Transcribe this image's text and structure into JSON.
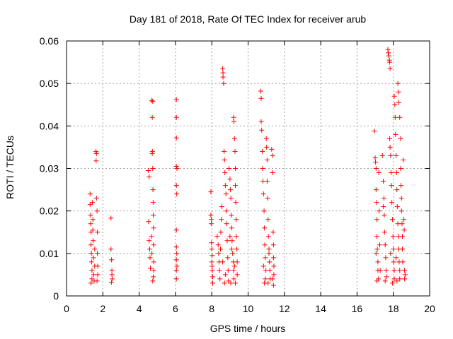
{
  "chart_data": {
    "type": "scatter",
    "title": "Day 181 of 2018, Rate Of TEC Index for receiver arub",
    "xlabel": "GPS time / hours",
    "ylabel": "ROTI / TECUs",
    "xlim": [
      0,
      20
    ],
    "ylim": [
      0,
      0.06
    ],
    "xticks": [
      "0",
      "2",
      "4",
      "6",
      "8",
      "10",
      "12",
      "14",
      "16",
      "18",
      "20"
    ],
    "yticks": [
      "0",
      "0.01",
      "0.02",
      "0.03",
      "0.04",
      "0.05",
      "0.06"
    ],
    "grid": true,
    "marker": "+",
    "marker_color": "#ff0000",
    "series": [
      {
        "name": "ROTI",
        "points": [
          [
            1.3,
            0.024
          ],
          [
            1.3,
            0.0215
          ],
          [
            1.32,
            0.019
          ],
          [
            1.33,
            0.017
          ],
          [
            1.35,
            0.015
          ],
          [
            1.35,
            0.012
          ],
          [
            1.37,
            0.01
          ],
          [
            1.38,
            0.008
          ],
          [
            1.4,
            0.006
          ],
          [
            1.4,
            0.004
          ],
          [
            1.42,
            0.022
          ],
          [
            1.45,
            0.018
          ],
          [
            1.47,
            0.013
          ],
          [
            1.48,
            0.009
          ],
          [
            1.5,
            0.005
          ],
          [
            1.52,
            0.0035
          ],
          [
            1.55,
            0.007
          ],
          [
            1.55,
            0.011
          ],
          [
            1.35,
            0.003
          ],
          [
            1.45,
            0.0155
          ],
          [
            1.62,
            0.034
          ],
          [
            1.65,
            0.0335
          ],
          [
            1.63,
            0.0318
          ],
          [
            1.65,
            0.023
          ],
          [
            1.68,
            0.02
          ],
          [
            1.7,
            0.015
          ],
          [
            1.7,
            0.01
          ],
          [
            1.72,
            0.007
          ],
          [
            1.72,
            0.005
          ],
          [
            1.68,
            0.0035
          ],
          [
            2.45,
            0.0183
          ],
          [
            2.45,
            0.011
          ],
          [
            2.48,
            0.0085
          ],
          [
            2.5,
            0.006
          ],
          [
            2.5,
            0.005
          ],
          [
            2.52,
            0.004
          ],
          [
            2.47,
            0.0032
          ],
          [
            4.5,
            0.0295
          ],
          [
            4.55,
            0.028
          ],
          [
            4.52,
            0.0175
          ],
          [
            4.55,
            0.013
          ],
          [
            4.58,
            0.011
          ],
          [
            4.6,
            0.009
          ],
          [
            4.62,
            0.0065
          ],
          [
            4.7,
            0.046
          ],
          [
            4.75,
            0.0458
          ],
          [
            4.72,
            0.042
          ],
          [
            4.73,
            0.034
          ],
          [
            4.72,
            0.0335
          ],
          [
            4.75,
            0.03
          ],
          [
            4.76,
            0.025
          ],
          [
            4.77,
            0.022
          ],
          [
            4.78,
            0.019
          ],
          [
            4.79,
            0.016
          ],
          [
            4.8,
            0.012
          ],
          [
            4.8,
            0.008
          ],
          [
            4.8,
            0.006
          ],
          [
            4.78,
            0.0045
          ],
          [
            4.75,
            0.0035
          ],
          [
            4.7,
            0.01
          ],
          [
            4.68,
            0.014
          ],
          [
            6.05,
            0.0462
          ],
          [
            6.05,
            0.042
          ],
          [
            6.05,
            0.0372
          ],
          [
            6.05,
            0.0305
          ],
          [
            6.08,
            0.03
          ],
          [
            6.05,
            0.026
          ],
          [
            6.07,
            0.024
          ],
          [
            6.05,
            0.0155
          ],
          [
            6.05,
            0.0115
          ],
          [
            6.07,
            0.01
          ],
          [
            6.05,
            0.0085
          ],
          [
            6.05,
            0.006
          ],
          [
            6.05,
            0.004
          ],
          [
            6.08,
            0.007
          ],
          [
            7.95,
            0.0245
          ],
          [
            7.95,
            0.019
          ],
          [
            7.97,
            0.017
          ],
          [
            7.98,
            0.0125
          ],
          [
            8.0,
            0.011
          ],
          [
            8.02,
            0.0095
          ],
          [
            8.0,
            0.008
          ],
          [
            8.03,
            0.006
          ],
          [
            8.05,
            0.0045
          ],
          [
            8.05,
            0.003
          ],
          [
            7.98,
            0.018
          ],
          [
            8.02,
            0.007
          ],
          [
            8.3,
            0.014
          ],
          [
            8.35,
            0.012
          ],
          [
            8.38,
            0.01
          ],
          [
            8.4,
            0.008
          ],
          [
            8.42,
            0.006
          ],
          [
            8.45,
            0.004
          ],
          [
            8.48,
            0.011
          ],
          [
            8.5,
            0.015
          ],
          [
            8.52,
            0.018
          ],
          [
            8.55,
            0.021
          ],
          [
            8.6,
            0.0535
          ],
          [
            8.62,
            0.0525
          ],
          [
            8.62,
            0.0515
          ],
          [
            8.65,
            0.05
          ],
          [
            8.68,
            0.034
          ],
          [
            8.7,
            0.032
          ],
          [
            8.72,
            0.029
          ],
          [
            8.75,
            0.026
          ],
          [
            8.78,
            0.024
          ],
          [
            8.8,
            0.02
          ],
          [
            8.82,
            0.017
          ],
          [
            8.85,
            0.013
          ],
          [
            8.88,
            0.009
          ],
          [
            8.9,
            0.006
          ],
          [
            8.92,
            0.0035
          ],
          [
            8.7,
            0.003
          ],
          [
            8.75,
            0.005
          ],
          [
            8.6,
            0.008
          ],
          [
            8.95,
            0.03
          ],
          [
            9.0,
            0.0275
          ],
          [
            9.02,
            0.025
          ],
          [
            9.05,
            0.023
          ],
          [
            9.08,
            0.019
          ],
          [
            9.1,
            0.016
          ],
          [
            9.12,
            0.013
          ],
          [
            9.15,
            0.01
          ],
          [
            9.18,
            0.008
          ],
          [
            9.2,
            0.006
          ],
          [
            9.22,
            0.004
          ],
          [
            9.05,
            0.003
          ],
          [
            9.1,
            0.011
          ],
          [
            9.0,
            0.014
          ],
          [
            9.2,
            0.042
          ],
          [
            9.22,
            0.041
          ],
          [
            9.25,
            0.037
          ],
          [
            9.28,
            0.034
          ],
          [
            9.3,
            0.03
          ],
          [
            9.3,
            0.026
          ],
          [
            9.32,
            0.022
          ],
          [
            9.35,
            0.018
          ],
          [
            9.35,
            0.014
          ],
          [
            9.38,
            0.011
          ],
          [
            9.4,
            0.008
          ],
          [
            9.4,
            0.005
          ],
          [
            9.3,
            0.003
          ],
          [
            9.25,
            0.007
          ],
          [
            10.7,
            0.0482
          ],
          [
            10.72,
            0.0465
          ],
          [
            10.72,
            0.041
          ],
          [
            10.75,
            0.039
          ],
          [
            10.78,
            0.034
          ],
          [
            10.8,
            0.03
          ],
          [
            10.82,
            0.027
          ],
          [
            10.85,
            0.024
          ],
          [
            10.88,
            0.02
          ],
          [
            10.9,
            0.016
          ],
          [
            10.92,
            0.012
          ],
          [
            10.95,
            0.009
          ],
          [
            10.98,
            0.006
          ],
          [
            10.95,
            0.004
          ],
          [
            10.9,
            0.003
          ],
          [
            10.85,
            0.007
          ],
          [
            11.0,
            0.037
          ],
          [
            11.02,
            0.035
          ],
          [
            11.05,
            0.032
          ],
          [
            11.05,
            0.027
          ],
          [
            11.08,
            0.023
          ],
          [
            11.1,
            0.018
          ],
          [
            11.12,
            0.014
          ],
          [
            11.15,
            0.011
          ],
          [
            11.18,
            0.008
          ],
          [
            11.2,
            0.006
          ],
          [
            11.22,
            0.004
          ],
          [
            11.1,
            0.003
          ],
          [
            11.15,
            0.01
          ],
          [
            11.3,
            0.0345
          ],
          [
            11.35,
            0.033
          ],
          [
            11.35,
            0.029
          ],
          [
            11.38,
            0.015
          ],
          [
            11.4,
            0.012
          ],
          [
            11.4,
            0.009
          ],
          [
            11.42,
            0.007
          ],
          [
            11.42,
            0.005
          ],
          [
            11.4,
            0.0025
          ],
          [
            11.35,
            0.004
          ],
          [
            16.95,
            0.0388
          ],
          [
            17.0,
            0.0325
          ],
          [
            17.02,
            0.0315
          ],
          [
            17.05,
            0.03
          ],
          [
            17.05,
            0.025
          ],
          [
            17.08,
            0.022
          ],
          [
            17.1,
            0.018
          ],
          [
            17.1,
            0.014
          ],
          [
            17.12,
            0.011
          ],
          [
            17.15,
            0.008
          ],
          [
            17.15,
            0.006
          ],
          [
            17.18,
            0.004
          ],
          [
            17.1,
            0.0035
          ],
          [
            17.05,
            0.01
          ],
          [
            17.2,
            0.029
          ],
          [
            17.22,
            0.02
          ],
          [
            17.25,
            0.012
          ],
          [
            17.28,
            0.006
          ],
          [
            17.4,
            0.033
          ],
          [
            17.45,
            0.027
          ],
          [
            17.48,
            0.023
          ],
          [
            17.5,
            0.019
          ],
          [
            17.52,
            0.015
          ],
          [
            17.55,
            0.012
          ],
          [
            17.58,
            0.009
          ],
          [
            17.6,
            0.006
          ],
          [
            17.62,
            0.0045
          ],
          [
            17.55,
            0.0035
          ],
          [
            17.45,
            0.021
          ],
          [
            17.7,
            0.058
          ],
          [
            17.72,
            0.0572
          ],
          [
            17.75,
            0.0565
          ],
          [
            17.78,
            0.0555
          ],
          [
            17.8,
            0.055
          ],
          [
            17.82,
            0.0535
          ],
          [
            17.8,
            0.037
          ],
          [
            17.82,
            0.035
          ],
          [
            17.85,
            0.033
          ],
          [
            17.88,
            0.029
          ],
          [
            17.9,
            0.026
          ],
          [
            17.92,
            0.022
          ],
          [
            17.95,
            0.018
          ],
          [
            17.98,
            0.014
          ],
          [
            18.0,
            0.011
          ],
          [
            18.02,
            0.008
          ],
          [
            18.05,
            0.006
          ],
          [
            18.05,
            0.004
          ],
          [
            17.95,
            0.003
          ],
          [
            17.85,
            0.01
          ],
          [
            18.05,
            0.047
          ],
          [
            18.08,
            0.045
          ],
          [
            18.1,
            0.042
          ],
          [
            18.12,
            0.038
          ],
          [
            18.15,
            0.033
          ],
          [
            18.18,
            0.029
          ],
          [
            18.2,
            0.025
          ],
          [
            18.22,
            0.021
          ],
          [
            18.25,
            0.017
          ],
          [
            18.28,
            0.014
          ],
          [
            18.3,
            0.011
          ],
          [
            18.32,
            0.008
          ],
          [
            18.35,
            0.006
          ],
          [
            18.35,
            0.004
          ],
          [
            18.2,
            0.0035
          ],
          [
            18.15,
            0.009
          ],
          [
            18.25,
            0.05
          ],
          [
            18.28,
            0.048
          ],
          [
            18.3,
            0.0455
          ],
          [
            18.35,
            0.042
          ],
          [
            18.4,
            0.037
          ],
          [
            18.4,
            0.03
          ],
          [
            18.42,
            0.026
          ],
          [
            18.45,
            0.023
          ],
          [
            18.45,
            0.02
          ],
          [
            18.48,
            0.017
          ],
          [
            18.5,
            0.014
          ],
          [
            18.5,
            0.011
          ],
          [
            18.52,
            0.008
          ],
          [
            18.55,
            0.032
          ],
          [
            18.58,
            0.018
          ],
          [
            18.6,
            0.0155
          ],
          [
            18.62,
            0.006
          ],
          [
            18.65,
            0.005
          ],
          [
            18.62,
            0.004
          ]
        ]
      }
    ]
  }
}
